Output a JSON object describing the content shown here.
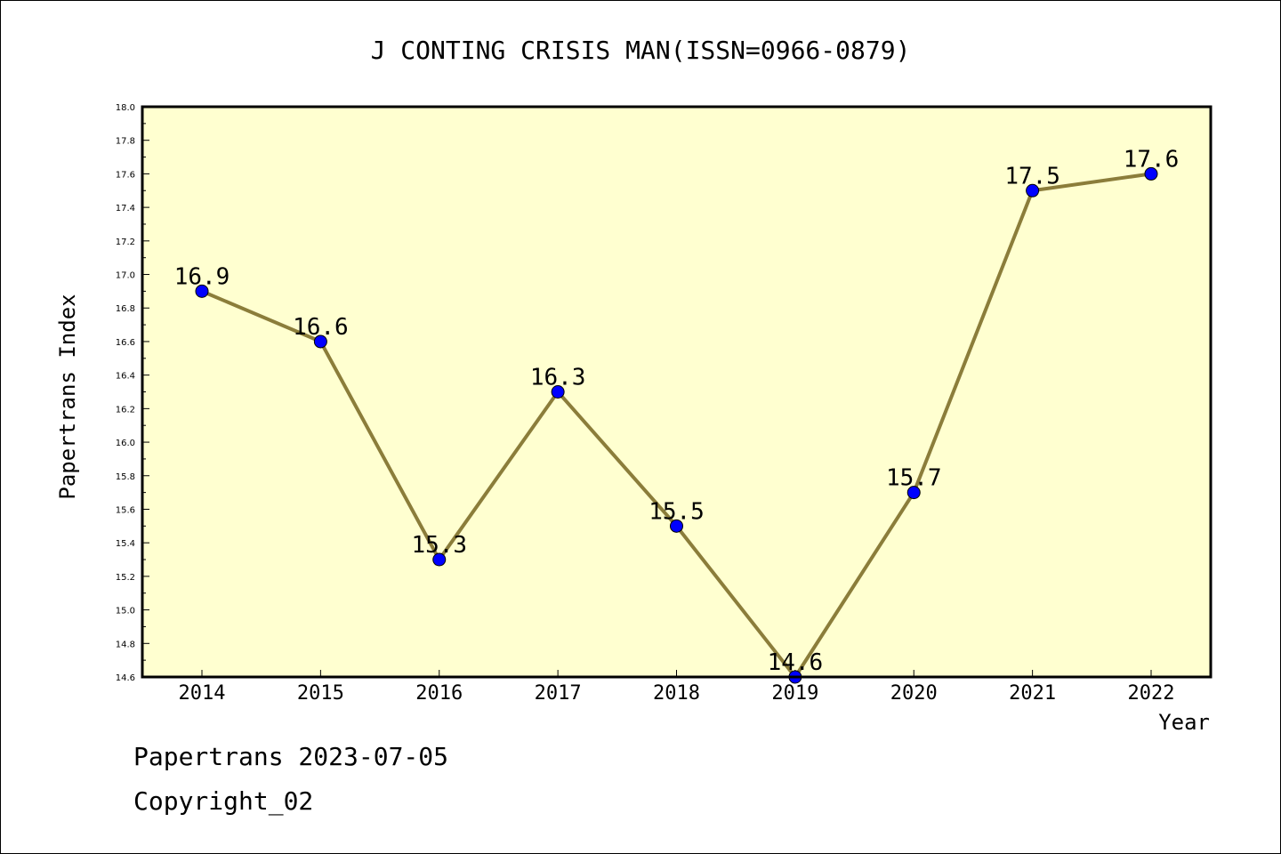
{
  "chart_data": {
    "type": "line",
    "title": "J CONTING CRISIS MAN(ISSN=0966-0879)",
    "xlabel": "Year",
    "ylabel": "Papertrans Index",
    "categories": [
      "2014",
      "2015",
      "2016",
      "2017",
      "2018",
      "2019",
      "2020",
      "2021",
      "2022"
    ],
    "values": [
      16.9,
      16.6,
      15.3,
      16.3,
      15.5,
      14.6,
      15.7,
      17.5,
      17.6
    ],
    "data_labels": [
      "16.9",
      "16.6",
      "15.3",
      "16.3",
      "15.5",
      "14.6",
      "15.7",
      "17.5",
      "17.6"
    ],
    "ylim": [
      14.6,
      18.0
    ],
    "yticks": [
      "14.6",
      "14.8",
      "15.0",
      "15.2",
      "15.4",
      "15.6",
      "15.8",
      "16.0",
      "16.2",
      "16.4",
      "16.6",
      "16.8",
      "17.0",
      "17.2",
      "17.4",
      "17.6",
      "17.8",
      "18.0"
    ],
    "grid": false,
    "colors": {
      "plot_background": "#ffffd0",
      "line": "#8b7d3a",
      "marker": "#0000ff"
    }
  },
  "footer": {
    "date_text": "Papertrans 2023-07-05",
    "copyright_text": "Copyright_02"
  }
}
